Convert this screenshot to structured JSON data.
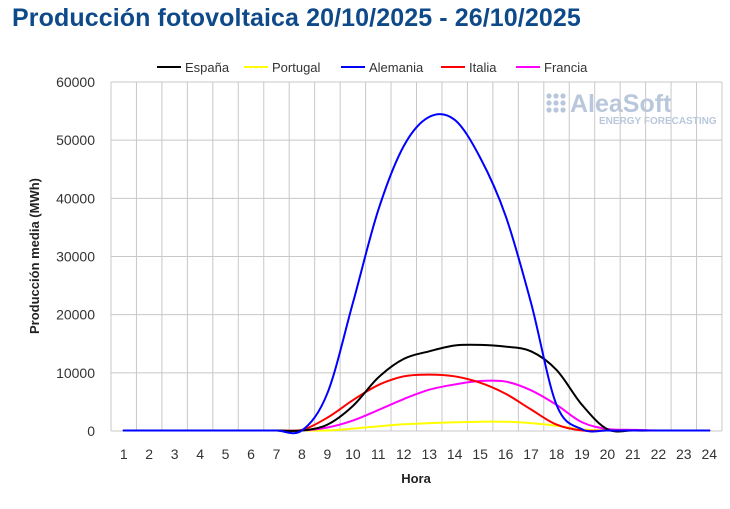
{
  "chart_data": {
    "type": "line",
    "title": "Producción fotovoltaica 20/10/2025 - 26/10/2025",
    "xlabel": "Hora",
    "ylabel": "Producción media (MWh)",
    "x": [
      1,
      2,
      3,
      4,
      5,
      6,
      7,
      8,
      9,
      10,
      11,
      12,
      13,
      14,
      15,
      16,
      17,
      18,
      19,
      20,
      21,
      22,
      23,
      24
    ],
    "ylim": [
      0,
      60000
    ],
    "yticks": [
      "0",
      "10000",
      "20000",
      "30000",
      "40000",
      "50000",
      "60000"
    ],
    "grid": true,
    "legend_position": "top",
    "series": [
      {
        "name": "España",
        "color": "#000000",
        "values": [
          0,
          0,
          0,
          0,
          0,
          0,
          0,
          50,
          1100,
          4300,
          9200,
          12400,
          13700,
          14700,
          14800,
          14500,
          13700,
          10500,
          4500,
          300,
          0,
          0,
          0,
          0
        ]
      },
      {
        "name": "Portugal",
        "color": "#ffff00",
        "values": [
          0,
          0,
          0,
          0,
          0,
          0,
          0,
          0,
          50,
          400,
          800,
          1150,
          1350,
          1500,
          1600,
          1600,
          1350,
          900,
          250,
          0,
          0,
          0,
          0,
          0
        ]
      },
      {
        "name": "Alemania",
        "color": "#0000ff",
        "values": [
          0,
          0,
          0,
          0,
          0,
          0,
          0,
          100,
          6500,
          22000,
          38000,
          49000,
          54000,
          53500,
          47000,
          37000,
          22000,
          4500,
          300,
          50,
          0,
          0,
          0,
          0
        ]
      },
      {
        "name": "Italia",
        "color": "#ff0000",
        "values": [
          0,
          0,
          0,
          0,
          0,
          0,
          0,
          200,
          2300,
          5300,
          7900,
          9400,
          9700,
          9400,
          8300,
          6400,
          3700,
          1100,
          0,
          0,
          0,
          0,
          0,
          0
        ]
      },
      {
        "name": "Francia",
        "color": "#ff00ff",
        "values": [
          0,
          0,
          0,
          0,
          0,
          0,
          0,
          50,
          600,
          1800,
          3600,
          5500,
          7100,
          8000,
          8600,
          8500,
          7000,
          4500,
          1500,
          350,
          200,
          50,
          0,
          0
        ]
      }
    ]
  },
  "logo": {
    "name": "AleaSoft",
    "tagline": "ENERGY FORECASTING"
  }
}
